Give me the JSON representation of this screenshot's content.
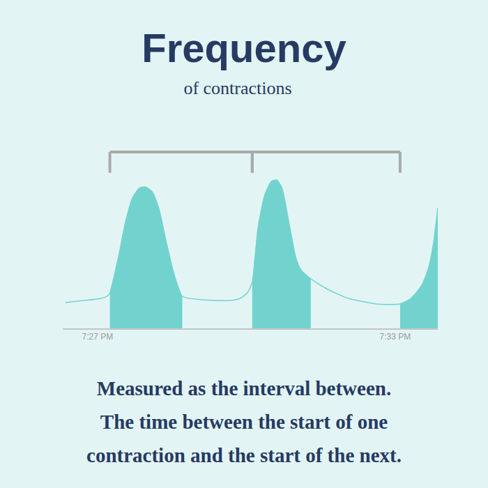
{
  "chart_data": {
    "type": "area",
    "title": "Frequency",
    "subtitle": "of contractions",
    "caption": [
      "Measured as the interval between.",
      "The time between the start of one",
      "contraction and the start of the next."
    ],
    "x": [
      -0.646,
      -0.28,
      0.07,
      0.21,
      0.25,
      0.42,
      0.56,
      0.7,
      0.84,
      0.96,
      1.1,
      1.24,
      1.38,
      1.55,
      1.71,
      2.11,
      2.67,
      2.88,
      3.02,
      3.12,
      3.23,
      3.37,
      3.51,
      3.61,
      3.72,
      3.86,
      4.0,
      4.1,
      4.3,
      4.64,
      5.06,
      5.62,
      6.1,
      6.32,
      6.53,
      6.67,
      6.77,
      6.86
    ],
    "values": [
      37,
      40,
      43,
      47,
      51,
      101,
      151,
      186,
      201,
      203,
      196,
      171,
      126,
      76,
      46,
      41,
      40,
      43,
      51,
      66,
      141,
      191,
      211,
      213,
      201,
      151,
      101,
      84,
      71,
      56,
      43,
      35,
      35,
      43,
      61,
      86,
      121,
      173
    ],
    "contractions": [
      [
        0.25,
        1.71
      ],
      [
        3.12,
        4.3
      ],
      [
        6.1,
        6.86
      ]
    ],
    "color": "#72d3ce",
    "xlim": [
      -0.7,
      6.86
    ],
    "xticks": [
      {
        "value": 0,
        "label": "7:27 PM"
      },
      {
        "value": 6,
        "label": "7:33 PM"
      }
    ],
    "ylim": [
      0,
      260
    ],
    "grid": false,
    "tick_labels": "x"
  }
}
